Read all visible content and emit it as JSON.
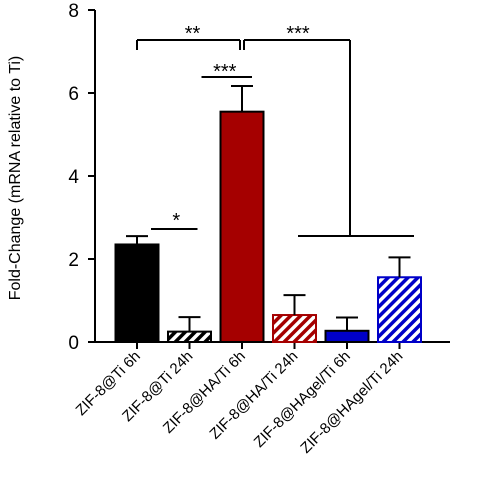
{
  "chart_data": {
    "type": "bar",
    "title": "",
    "xlabel": "",
    "ylabel": "Fold-Change (mRNA relative to Ti)",
    "ylim": [
      0,
      8
    ],
    "yticks": [
      0,
      2,
      4,
      6,
      8
    ],
    "grid": false,
    "categories": [
      "ZIF-8@Ti 6h",
      "ZIF-8@Ti 24h",
      "ZIF-8@HA/Ti 6h",
      "ZIF-8@HA/Ti 24h",
      "ZIF-8@HAgel/Ti 6h",
      "ZIF-8@HAgel/Ti 24h"
    ],
    "values": [
      2.35,
      0.25,
      5.55,
      0.65,
      0.27,
      1.56
    ],
    "errors": [
      0.2,
      0.35,
      0.62,
      0.48,
      0.32,
      0.48
    ],
    "bars": [
      {
        "color": "#000000",
        "hatch": false
      },
      {
        "color": "#000000",
        "hatch": true
      },
      {
        "color": "#a50000",
        "hatch": false
      },
      {
        "color": "#a50000",
        "hatch": true
      },
      {
        "color": "#0000c8",
        "hatch": false
      },
      {
        "color": "#0000c8",
        "hatch": true
      }
    ],
    "significance": [
      {
        "label": "*",
        "pair": [
          0,
          1
        ]
      },
      {
        "label": "***",
        "pair": [
          1,
          2
        ]
      },
      {
        "label": "**",
        "pair": [
          0,
          2
        ]
      },
      {
        "label": "***",
        "pair": [
          2,
          5
        ]
      }
    ]
  }
}
